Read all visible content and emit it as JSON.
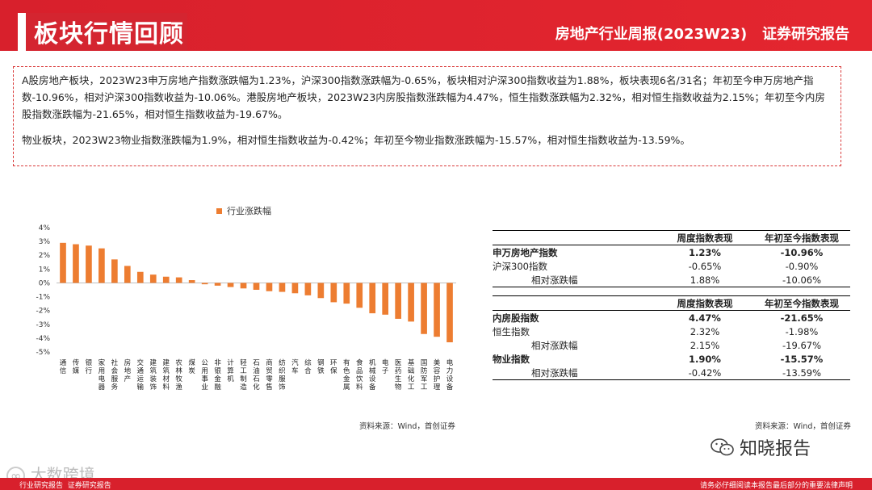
{
  "header": {
    "title": "板块行情回顾",
    "report": "房地产行业周报(2023W23)   证券研究报告"
  },
  "summary": {
    "p1": "A股房地产板块，2023W23申万房地产指数涨跌幅为1.23%，沪深300指数涨跌幅为-0.65%，板块相对沪深300指数收益为1.88%，板块表现6名/31名；年初至今申万房地产指数-10.96%，相对沪深300指数收益为-10.06%。港股房地产板块，2023W23内房股指数涨跌幅为4.47%，恒生指数涨跌幅为2.32%，相对恒生指数收益为2.15%；年初至今内房股指数涨跌幅为-21.65%，相对恒生指数收益为-19.67%。",
    "p2": "物业板块，2023W23物业指数涨跌幅为1.9%，相对恒生指数收益为-0.42%；年初至今物业指数涨跌幅为-15.57%，相对恒生指数收益为-13.59%。"
  },
  "chart_data": {
    "type": "bar",
    "legend": "行业涨跌幅",
    "color": "#ed7d31",
    "ylim": [
      -5,
      4
    ],
    "yticks": [
      "4%",
      "3%",
      "2%",
      "1%",
      "0%",
      "-1%",
      "-2%",
      "-3%",
      "-4%",
      "-5%"
    ],
    "categories": [
      "通信",
      "传媒",
      "银行",
      "家用电器",
      "社会服务",
      "房地产",
      "交通运输",
      "建筑装饰",
      "建筑材料",
      "农林牧渔",
      "煤炭",
      "公用事业",
      "非银金融",
      "计算机",
      "轻工制造",
      "石油石化",
      "商贸零售",
      "纺织服饰",
      "汽车",
      "综合",
      "钢铁",
      "环保",
      "有色金属",
      "食品饮料",
      "机械设备",
      "电子",
      "医药生物",
      "基础化工",
      "国防军工",
      "美容护理",
      "电力设备"
    ],
    "values": [
      2.9,
      2.8,
      2.7,
      2.5,
      1.7,
      1.23,
      0.8,
      0.6,
      0.45,
      0.4,
      0.2,
      -0.1,
      -0.2,
      -0.3,
      -0.4,
      -0.5,
      -0.6,
      -0.65,
      -0.75,
      -0.9,
      -1.1,
      -1.4,
      -1.5,
      -1.8,
      -2.2,
      -2.3,
      -2.6,
      -2.8,
      -3.7,
      -3.9,
      -4.3
    ]
  },
  "source_left": "资料来源：Wind，首创证券",
  "source_right": "资料来源：Wind，首创证券",
  "table1": {
    "headers": [
      "",
      "周度指数表现",
      "年初至今指数表现"
    ],
    "rows": [
      {
        "label": "申万房地产指数",
        "w": "1.23%",
        "y": "-10.96%",
        "bold": true
      },
      {
        "label": "沪深300指数",
        "w": "-0.65%",
        "y": "-0.90%",
        "bold": false
      },
      {
        "label": "相对涨跌幅",
        "w": "1.88%",
        "y": "-10.06%",
        "bold": false,
        "indent": true
      }
    ]
  },
  "table2": {
    "headers": [
      "",
      "周度指数表现",
      "年初至今指数表现"
    ],
    "rows": [
      {
        "label": "内房股指数",
        "w": "4.47%",
        "y": "-21.65%",
        "bold": true
      },
      {
        "label": "恒生指数",
        "w": "2.32%",
        "y": "-1.98%",
        "bold": false
      },
      {
        "label": "相对涨跌幅",
        "w": "2.15%",
        "y": "-19.67%",
        "bold": false,
        "indent": true
      },
      {
        "label": "物业指数",
        "w": "1.90%",
        "y": "-15.57%",
        "bold": true
      },
      {
        "label": "相对涨跌幅",
        "w": "-0.42%",
        "y": "-13.59%",
        "bold": false,
        "indent": true
      }
    ]
  },
  "watermark": "知晓报告",
  "watermark_logo": "大数跨境",
  "footer": {
    "left": "行业研究报告  证券研究报告",
    "right": "请务必仔细阅读本报告最后部分的重要法律声明"
  }
}
